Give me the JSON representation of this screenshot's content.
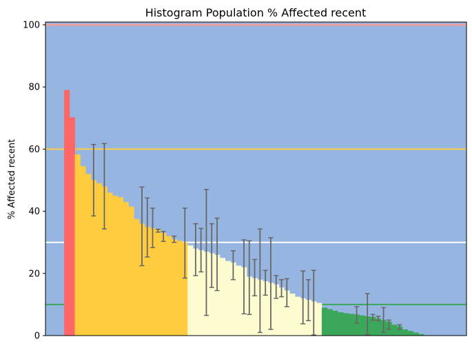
{
  "chart_data": {
    "type": "bar",
    "title": "Histogram Population % Affected recent",
    "xlabel": "",
    "ylabel": "% Affected recent",
    "ylim": [
      0,
      100
    ],
    "yticks": [
      0,
      20,
      40,
      60,
      80,
      100
    ],
    "grid": false,
    "colors": {
      "background": "#97b5e1",
      "red": "#ff6666",
      "yellow": "#ffcc40",
      "lightyellow": "#fcfcd0",
      "green": "#3aa75a",
      "errorbar": "#666666",
      "line_100": "#f0a0a0",
      "line_60": "#ffcc40",
      "line_30": "#ffffff",
      "line_10": "#3aa75a"
    },
    "reference_lines": [
      {
        "y": 100,
        "color": "#f0a0a0"
      },
      {
        "y": 60,
        "color": "#ffcc40"
      },
      {
        "y": 30,
        "color": "#ffffff"
      },
      {
        "y": 10,
        "color": "#3aa75a"
      }
    ],
    "bars": [
      {
        "v": 79.0,
        "c": "red"
      },
      {
        "v": 70.2,
        "c": "red"
      },
      {
        "v": 58.3,
        "c": "yellow"
      },
      {
        "v": 54.5,
        "c": "yellow"
      },
      {
        "v": 52.0,
        "c": "yellow"
      },
      {
        "v": 50.0,
        "c": "yellow",
        "err": [
          38.5,
          61.5
        ]
      },
      {
        "v": 49.0,
        "c": "yellow"
      },
      {
        "v": 48.0,
        "c": "yellow",
        "err": [
          34.3,
          61.8
        ]
      },
      {
        "v": 46.0,
        "c": "yellow"
      },
      {
        "v": 45.0,
        "c": "yellow"
      },
      {
        "v": 44.5,
        "c": "yellow"
      },
      {
        "v": 43.0,
        "c": "yellow"
      },
      {
        "v": 41.5,
        "c": "yellow"
      },
      {
        "v": 37.5,
        "c": "yellow"
      },
      {
        "v": 36.0,
        "c": "yellow",
        "err": [
          22.5,
          47.8
        ]
      },
      {
        "v": 35.0,
        "c": "yellow",
        "err": [
          25.3,
          44.3
        ]
      },
      {
        "v": 34.5,
        "c": "yellow",
        "err": [
          28.3,
          41.0
        ]
      },
      {
        "v": 34.0,
        "c": "yellow",
        "err": [
          33.3,
          34.2
        ]
      },
      {
        "v": 33.0,
        "c": "yellow",
        "err": [
          30.3,
          33.5
        ]
      },
      {
        "v": 32.0,
        "c": "yellow"
      },
      {
        "v": 31.0,
        "c": "yellow",
        "err": [
          30.0,
          32.0
        ]
      },
      {
        "v": 30.5,
        "c": "yellow"
      },
      {
        "v": 30.0,
        "c": "yellow",
        "err": [
          18.5,
          41.0
        ]
      },
      {
        "v": 29.0,
        "c": "lightyellow"
      },
      {
        "v": 28.0,
        "c": "lightyellow",
        "err": [
          19.3,
          36.0
        ]
      },
      {
        "v": 27.5,
        "c": "lightyellow",
        "err": [
          20.5,
          34.5
        ]
      },
      {
        "v": 27.0,
        "c": "lightyellow",
        "err": [
          6.5,
          47.0
        ]
      },
      {
        "v": 26.5,
        "c": "lightyellow",
        "err": [
          15.5,
          36.0
        ]
      },
      {
        "v": 26.0,
        "c": "lightyellow",
        "err": [
          14.5,
          37.8
        ]
      },
      {
        "v": 25.0,
        "c": "lightyellow"
      },
      {
        "v": 24.0,
        "c": "lightyellow"
      },
      {
        "v": 23.5,
        "c": "lightyellow",
        "err": [
          18.0,
          27.3
        ]
      },
      {
        "v": 22.5,
        "c": "lightyellow"
      },
      {
        "v": 22.0,
        "c": "lightyellow",
        "err": [
          7.0,
          30.8
        ]
      },
      {
        "v": 19.0,
        "c": "lightyellow",
        "err": [
          6.8,
          30.5
        ]
      },
      {
        "v": 18.5,
        "c": "lightyellow",
        "err": [
          12.8,
          24.5
        ]
      },
      {
        "v": 18.0,
        "c": "lightyellow",
        "err": [
          1.0,
          34.3
        ]
      },
      {
        "v": 17.5,
        "c": "lightyellow",
        "err": [
          13.0,
          21.0
        ]
      },
      {
        "v": 17.0,
        "c": "lightyellow",
        "err": [
          2.0,
          31.5
        ]
      },
      {
        "v": 16.5,
        "c": "lightyellow",
        "err": [
          12.0,
          19.3
        ]
      },
      {
        "v": 15.5,
        "c": "lightyellow",
        "err": [
          12.5,
          18.0
        ]
      },
      {
        "v": 14.5,
        "c": "lightyellow",
        "err": [
          9.3,
          18.3
        ]
      },
      {
        "v": 13.5,
        "c": "lightyellow"
      },
      {
        "v": 12.5,
        "c": "lightyellow"
      },
      {
        "v": 12.0,
        "c": "lightyellow",
        "err": [
          3.8,
          20.8
        ]
      },
      {
        "v": 11.5,
        "c": "lightyellow",
        "err": [
          4.8,
          18.0
        ]
      },
      {
        "v": 11.0,
        "c": "lightyellow",
        "err": [
          0.2,
          21.0
        ]
      },
      {
        "v": 10.5,
        "c": "lightyellow"
      },
      {
        "v": 9.0,
        "c": "green"
      },
      {
        "v": 8.5,
        "c": "green"
      },
      {
        "v": 8.0,
        "c": "green"
      },
      {
        "v": 7.5,
        "c": "green"
      },
      {
        "v": 7.2,
        "c": "green"
      },
      {
        "v": 7.0,
        "c": "green"
      },
      {
        "v": 6.8,
        "c": "green",
        "err": [
          4.0,
          9.3
        ]
      },
      {
        "v": 6.5,
        "c": "green"
      },
      {
        "v": 6.2,
        "c": "green",
        "err": [
          0.3,
          13.5
        ]
      },
      {
        "v": 6.0,
        "c": "green",
        "err": [
          5.0,
          6.8
        ]
      },
      {
        "v": 5.5,
        "c": "green",
        "err": [
          4.8,
          6.2
        ]
      },
      {
        "v": 5.0,
        "c": "green",
        "err": [
          1.0,
          9.0
        ]
      },
      {
        "v": 4.5,
        "c": "green",
        "err": [
          2.0,
          5.0
        ]
      },
      {
        "v": 3.5,
        "c": "green"
      },
      {
        "v": 3.0,
        "c": "green",
        "err": [
          2.0,
          3.5
        ]
      },
      {
        "v": 2.0,
        "c": "green"
      },
      {
        "v": 1.5,
        "c": "green"
      },
      {
        "v": 1.0,
        "c": "green"
      },
      {
        "v": 0.5,
        "c": "green"
      }
    ]
  }
}
